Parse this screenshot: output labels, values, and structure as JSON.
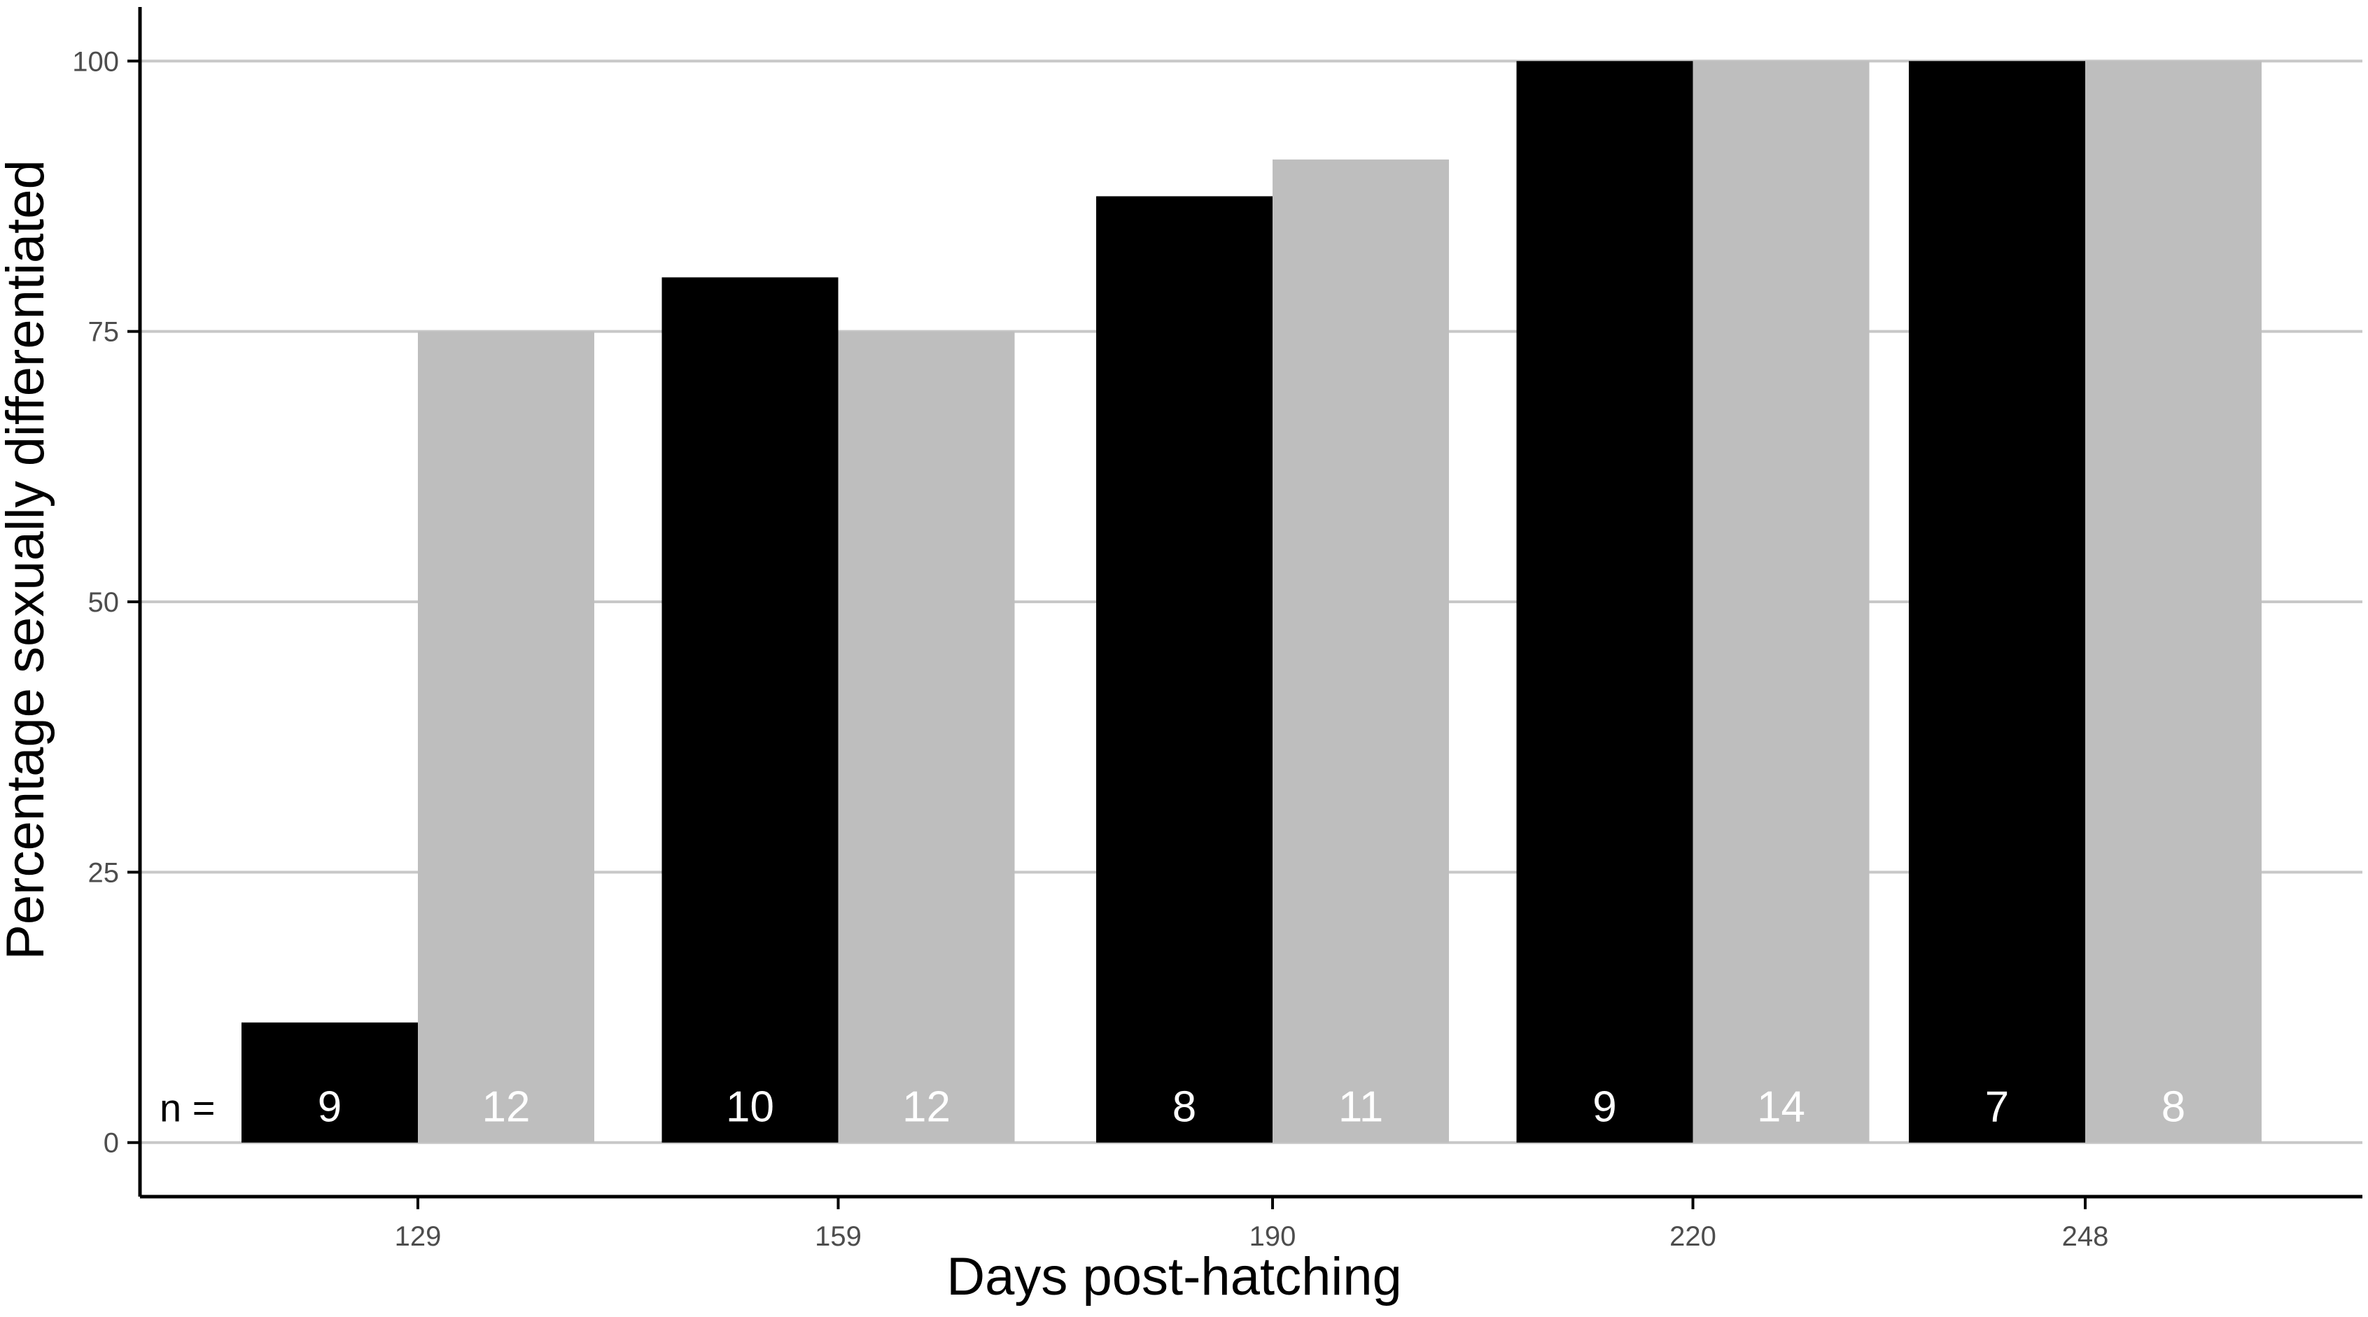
{
  "chart_data": {
    "type": "bar",
    "title": "",
    "xlabel": "Days post-hatching",
    "ylabel": "Percentage sexually differentiated",
    "categories": [
      "129",
      "159",
      "190",
      "220",
      "248"
    ],
    "series": [
      {
        "values": [
          11.1,
          80,
          87.5,
          100,
          100
        ],
        "n_labels": [
          "9",
          "10",
          "8",
          "9",
          "7"
        ],
        "color": "#000000",
        "label_color": "#ffffff"
      },
      {
        "values": [
          75,
          75,
          90.9,
          100,
          100
        ],
        "n_labels": [
          "12",
          "12",
          "11",
          "14",
          "8"
        ],
        "color": "#bebebe",
        "label_color": "#ffffff"
      }
    ],
    "n_prefix": "n =",
    "ylim": [
      -5,
      105
    ],
    "yticks": [
      0,
      25,
      50,
      75,
      100
    ],
    "grid": true,
    "gridline_color": "#c8c8c8",
    "axis_color": "#000000",
    "tick_label_color": "#4d4d4d"
  }
}
